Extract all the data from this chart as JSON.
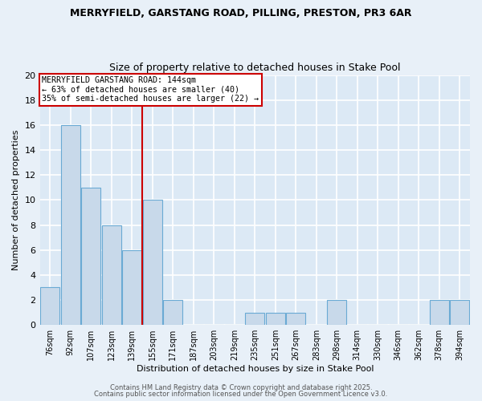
{
  "title": "MERRYFIELD, GARSTANG ROAD, PILLING, PRESTON, PR3 6AR",
  "subtitle": "Size of property relative to detached houses in Stake Pool",
  "xlabel": "Distribution of detached houses by size in Stake Pool",
  "ylabel": "Number of detached properties",
  "bar_color": "#c8d9ea",
  "bar_edge_color": "#6aaad4",
  "background_color": "#dce9f5",
  "grid_color": "#ffffff",
  "fig_bg_color": "#e8f0f8",
  "annotation_box_color": "#cc0000",
  "vline_color": "#cc0000",
  "categories": [
    "76sqm",
    "92sqm",
    "107sqm",
    "123sqm",
    "139sqm",
    "155sqm",
    "171sqm",
    "187sqm",
    "203sqm",
    "219sqm",
    "235sqm",
    "251sqm",
    "267sqm",
    "283sqm",
    "298sqm",
    "314sqm",
    "330sqm",
    "346sqm",
    "362sqm",
    "378sqm",
    "394sqm"
  ],
  "values": [
    3,
    16,
    11,
    8,
    6,
    10,
    2,
    0,
    0,
    0,
    1,
    1,
    1,
    0,
    2,
    0,
    0,
    0,
    0,
    2,
    2
  ],
  "vline_x": 4.5,
  "annotation_line1": "MERRYFIELD GARSTANG ROAD: 144sqm",
  "annotation_line2": "← 63% of detached houses are smaller (40)",
  "annotation_line3": "35% of semi-detached houses are larger (22) →",
  "ylim": [
    0,
    20
  ],
  "yticks": [
    0,
    2,
    4,
    6,
    8,
    10,
    12,
    14,
    16,
    18,
    20
  ],
  "footer1": "Contains HM Land Registry data © Crown copyright and database right 2025.",
  "footer2": "Contains public sector information licensed under the Open Government Licence v3.0."
}
